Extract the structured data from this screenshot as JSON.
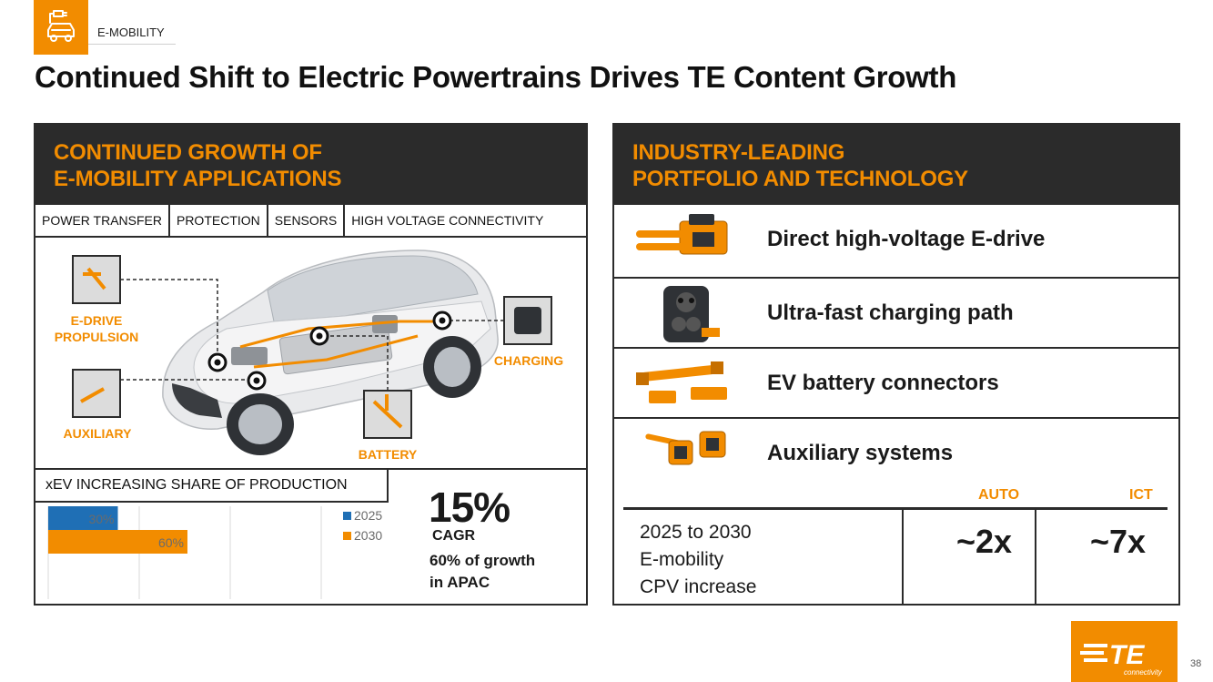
{
  "header": {
    "section_label": "E-MOBILITY",
    "title": "Continued Shift to Electric Powertrains Drives TE Content Growth",
    "badge_icon": "electric-car-plug-icon"
  },
  "left_panel": {
    "heading_line1": "CONTINUED GROWTH OF",
    "heading_line2": "E-MOBILITY APPLICATIONS",
    "application_tabs": [
      "POWER TRANSFER",
      "PROTECTION",
      "SENSORS",
      "HIGH VOLTAGE CONNECTIVITY"
    ],
    "callouts": {
      "edrive_line1": "E-DRIVE",
      "edrive_line2": "PROPULSION",
      "auxiliary": "AUXILIARY",
      "battery": "BATTERY",
      "charging": "CHARGING"
    },
    "chart_title": "xEV INCREASING SHARE OF PRODUCTION",
    "stat_value": "15%",
    "stat_label": "CAGR",
    "stat_note_line1": "60% of growth",
    "stat_note_line2": "in APAC"
  },
  "chart_data": {
    "type": "bar",
    "orientation": "horizontal",
    "title": "xEV INCREASING SHARE OF PRODUCTION",
    "series": [
      {
        "name": "2025",
        "values": [
          30
        ],
        "color": "#1f6fb5",
        "label": "30%"
      },
      {
        "name": "2030",
        "values": [
          60
        ],
        "color": "#f28c00",
        "label": "60%"
      }
    ],
    "xlim": [
      0,
      100
    ],
    "grid": true,
    "legend_position": "right"
  },
  "right_panel": {
    "heading_line1": "INDUSTRY-LEADING",
    "heading_line2": "PORTFOLIO AND TECHNOLOGY",
    "items": [
      {
        "label": "Direct high-voltage E-drive",
        "icon": "hv-connector-icon"
      },
      {
        "label": "Ultra-fast charging path",
        "icon": "charging-inlet-icon"
      },
      {
        "label": "EV battery connectors",
        "icon": "battery-connector-icon"
      },
      {
        "label": "Auxiliary systems",
        "icon": "auxiliary-connector-icon"
      }
    ],
    "cpv": {
      "col_auto": "AUTO",
      "col_ict": "ICT",
      "desc_line1": "2025 to 2030",
      "desc_line2": "E-mobility",
      "desc_line3": "CPV increase",
      "auto_value": "~2x",
      "ict_value": "~7x"
    }
  },
  "footer": {
    "page_number": "38",
    "logo_text": "TE",
    "logo_subtext": "connectivity"
  },
  "colors": {
    "accent": "#f28c00",
    "dark": "#2b2b2b",
    "blue": "#1f6fb5"
  }
}
